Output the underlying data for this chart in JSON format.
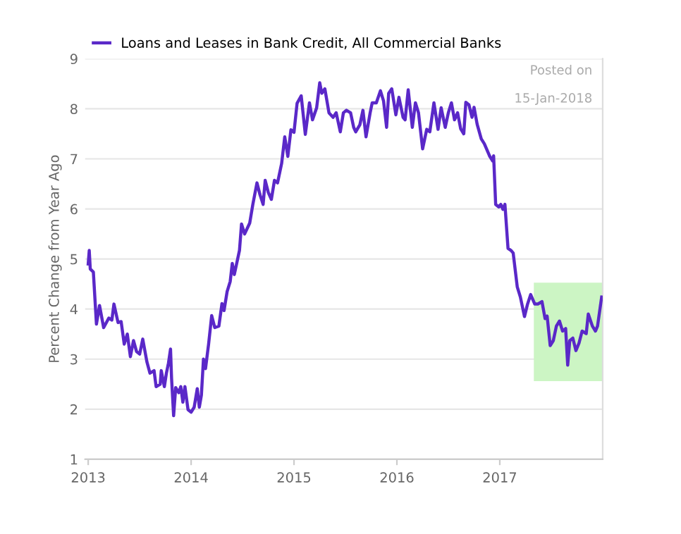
{
  "chart_data": {
    "type": "line",
    "ylabel": "Percent Change from Year Ago",
    "xlim": [
      2012.97,
      2018.0
    ],
    "xticks": [
      {
        "value": 2013,
        "label": "2013"
      },
      {
        "value": 2014,
        "label": "2014"
      },
      {
        "value": 2015,
        "label": "2015"
      },
      {
        "value": 2016,
        "label": "2016"
      },
      {
        "value": 2017,
        "label": "2017"
      }
    ],
    "ylim": [
      1,
      9
    ],
    "yticks": [
      1,
      2,
      3,
      4,
      5,
      6,
      7,
      8,
      9
    ],
    "grid": "y",
    "legend": "top",
    "marker": "none",
    "line_style": "solid",
    "annotations": [
      "Posted on",
      "15-Jan-2018"
    ],
    "series": [
      {
        "name": "Loans and Leases in Bank Credit, All Commercial Banks",
        "color": "#5a28c8",
        "x": [
          2013.0,
          2013.01,
          2013.02,
          2013.05,
          2013.08,
          2013.11,
          2013.15,
          2013.2,
          2013.23,
          2013.25,
          2013.29,
          2013.32,
          2013.35,
          2013.38,
          2013.41,
          2013.44,
          2013.47,
          2013.5,
          2013.53,
          2013.57,
          2013.6,
          2013.64,
          2013.66,
          2013.7,
          2013.71,
          2013.74,
          2013.76,
          2013.78,
          2013.8,
          2013.81,
          2013.83,
          2013.85,
          2013.88,
          2013.9,
          2013.92,
          2013.94,
          2013.97,
          2014.0,
          2014.03,
          2014.06,
          2014.08,
          2014.1,
          2014.12,
          2014.14,
          2014.17,
          2014.2,
          2014.23,
          2014.27,
          2014.3,
          2014.32,
          2014.35,
          2014.38,
          2014.4,
          2014.42,
          2014.47,
          2014.49,
          2014.52,
          2014.57,
          2014.6,
          2014.64,
          2014.67,
          2014.7,
          2014.72,
          2014.75,
          2014.78,
          2014.81,
          2014.84,
          2014.88,
          2014.91,
          2014.94,
          2014.97,
          2015.0,
          2015.03,
          2015.07,
          2015.11,
          2015.15,
          2015.18,
          2015.22,
          2015.25,
          2015.27,
          2015.3,
          2015.34,
          2015.38,
          2015.41,
          2015.45,
          2015.48,
          2015.51,
          2015.55,
          2015.58,
          2015.6,
          2015.64,
          2015.67,
          2015.7,
          2015.74,
          2015.76,
          2015.8,
          2015.84,
          2015.87,
          2015.9,
          2015.92,
          2015.95,
          2015.99,
          2016.02,
          2016.06,
          2016.08,
          2016.11,
          2016.15,
          2016.18,
          2016.21,
          2016.25,
          2016.29,
          2016.32,
          2016.36,
          2016.4,
          2016.43,
          2016.47,
          2016.5,
          2016.53,
          2016.56,
          2016.59,
          2016.62,
          2016.65,
          2016.67,
          2016.7,
          2016.73,
          2016.75,
          2016.78,
          2016.82,
          2016.85,
          2016.9,
          2016.93,
          2016.94,
          2016.96,
          2016.99,
          2017.01,
          2017.03,
          2017.05,
          2017.08,
          2017.11,
          2017.13,
          2017.17,
          2017.2,
          2017.24,
          2017.27,
          2017.3,
          2017.34,
          2017.37,
          2017.41,
          2017.44,
          2017.46,
          2017.49,
          2017.52,
          2017.55,
          2017.58,
          2017.61,
          2017.64,
          2017.66,
          2017.68,
          2017.71,
          2017.74,
          2017.77,
          2017.8,
          2017.84,
          2017.86,
          2017.9,
          2017.93,
          2017.95,
          2017.99
        ],
        "values": [
          4.9,
          5.17,
          4.8,
          4.74,
          3.7,
          4.07,
          3.63,
          3.82,
          3.78,
          4.1,
          3.73,
          3.75,
          3.3,
          3.5,
          3.05,
          3.37,
          3.15,
          3.1,
          3.4,
          2.95,
          2.72,
          2.77,
          2.45,
          2.5,
          2.77,
          2.45,
          2.72,
          2.92,
          3.2,
          2.62,
          1.87,
          2.43,
          2.33,
          2.45,
          2.14,
          2.45,
          1.99,
          1.94,
          2.04,
          2.41,
          2.04,
          2.28,
          3.0,
          2.81,
          3.3,
          3.87,
          3.63,
          3.66,
          4.11,
          3.97,
          4.35,
          4.55,
          4.91,
          4.69,
          5.17,
          5.7,
          5.5,
          5.72,
          6.09,
          6.52,
          6.28,
          6.09,
          6.57,
          6.33,
          6.19,
          6.57,
          6.52,
          6.91,
          7.44,
          7.05,
          7.58,
          7.53,
          8.11,
          8.26,
          7.49,
          8.12,
          7.78,
          8.02,
          8.52,
          8.31,
          8.4,
          7.92,
          7.83,
          7.92,
          7.54,
          7.92,
          7.97,
          7.92,
          7.63,
          7.54,
          7.68,
          7.97,
          7.44,
          7.92,
          8.12,
          8.12,
          8.36,
          8.16,
          7.63,
          8.31,
          8.4,
          7.88,
          8.23,
          7.83,
          7.78,
          8.38,
          7.63,
          8.12,
          7.92,
          7.2,
          7.59,
          7.54,
          8.12,
          7.59,
          8.02,
          7.63,
          7.92,
          8.12,
          7.78,
          7.92,
          7.6,
          7.5,
          8.13,
          8.08,
          7.83,
          8.03,
          7.69,
          7.4,
          7.3,
          7.06,
          6.96,
          7.06,
          6.09,
          6.04,
          6.09,
          5.99,
          6.09,
          5.21,
          5.17,
          5.12,
          4.44,
          4.24,
          3.85,
          4.1,
          4.29,
          4.1,
          4.1,
          4.15,
          3.81,
          3.86,
          3.27,
          3.37,
          3.66,
          3.76,
          3.56,
          3.61,
          2.88,
          3.37,
          3.42,
          3.17,
          3.32,
          3.56,
          3.51,
          3.9,
          3.66,
          3.56,
          3.66,
          4.24
        ]
      }
    ]
  }
}
